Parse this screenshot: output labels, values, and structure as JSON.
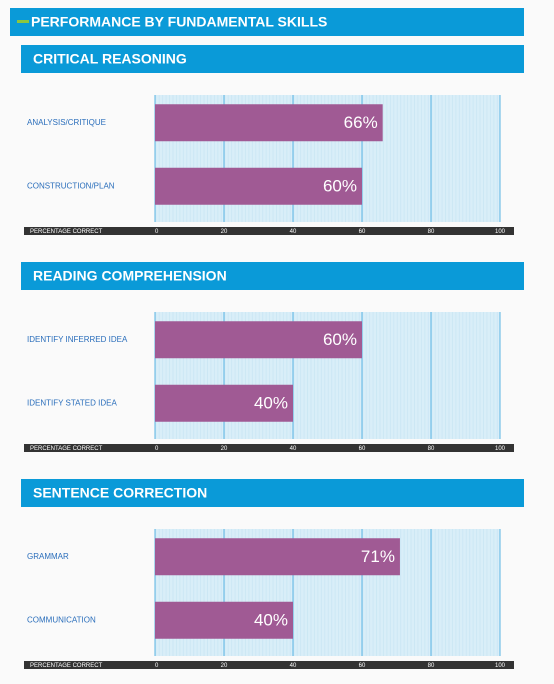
{
  "header": {
    "title": "PERFORMANCE BY FUNDAMENTAL SKILLS"
  },
  "chart_data": [
    {
      "type": "bar",
      "orientation": "horizontal",
      "title": "CRITICAL REASONING",
      "categories": [
        "ANALYSIS/CRITIQUE",
        "CONSTRUCTION/PLAN"
      ],
      "values": [
        66,
        60
      ],
      "value_labels": [
        "66%",
        "60%"
      ],
      "color": "#a05a94",
      "xlabel": "PERCENTAGE CORRECT",
      "xlim": [
        0,
        100
      ],
      "xticks": [
        0,
        20,
        40,
        60,
        80,
        100
      ],
      "grid": true
    },
    {
      "type": "bar",
      "orientation": "horizontal",
      "title": "READING COMPREHENSION",
      "categories": [
        "IDENTIFY INFERRED IDEA",
        "IDENTIFY STATED IDEA"
      ],
      "values": [
        60,
        40
      ],
      "value_labels": [
        "60%",
        "40%"
      ],
      "color": "#a05a94",
      "xlabel": "PERCENTAGE CORRECT",
      "xlim": [
        0,
        100
      ],
      "xticks": [
        0,
        20,
        40,
        60,
        80,
        100
      ],
      "grid": true
    },
    {
      "type": "bar",
      "orientation": "horizontal",
      "title": "SENTENCE CORRECTION",
      "categories": [
        "GRAMMAR",
        "COMMUNICATION"
      ],
      "values": [
        71,
        40
      ],
      "value_labels": [
        "71%",
        "40%"
      ],
      "color": "#a05a94",
      "xlabel": "PERCENTAGE CORRECT",
      "xlim": [
        0,
        100
      ],
      "xticks": [
        0,
        20,
        40,
        60,
        80,
        100
      ],
      "grid": true
    }
  ]
}
